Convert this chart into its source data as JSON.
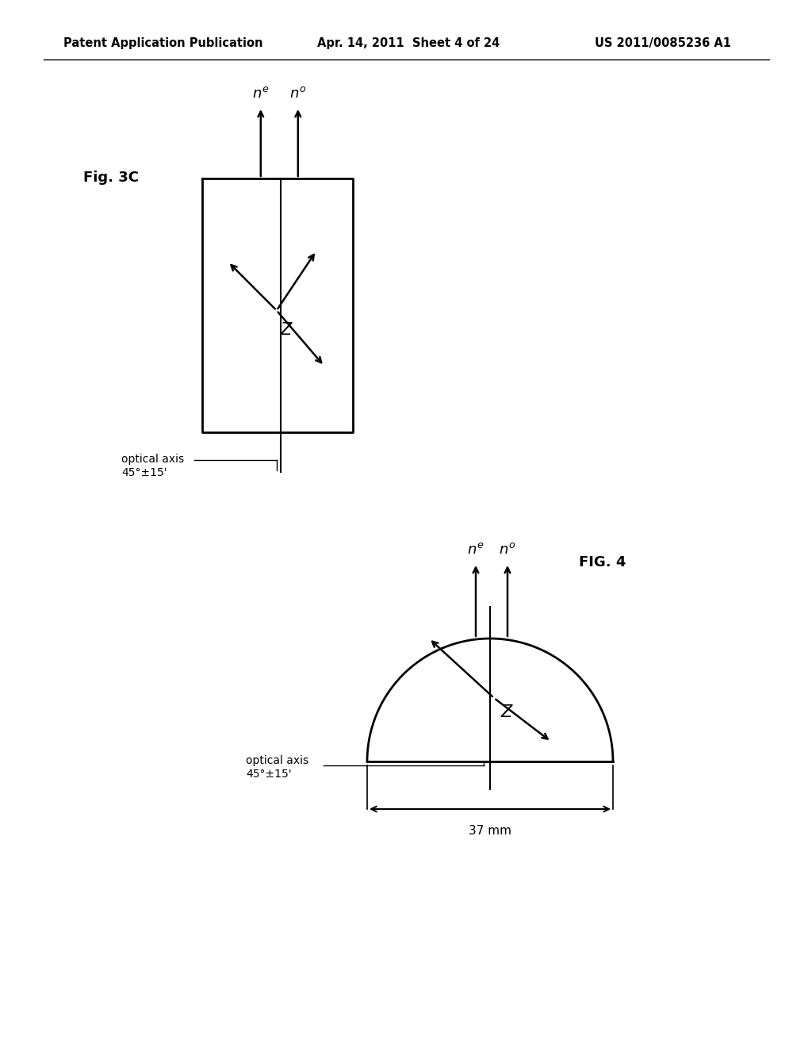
{
  "bg_color": "#ffffff",
  "header_left": "Patent Application Publication",
  "header_center": "Apr. 14, 2011  Sheet 4 of 24",
  "header_right": "US 2011/0085236 A1",
  "fig3c_label": "Fig. 3C",
  "fig4_label": "FIG. 4",
  "optical_axis_label1": "optical axis\n45°±15'",
  "optical_axis_label2": "optical axis\n45°±15'",
  "dim_label": "37 mm",
  "line_color": "#000000",
  "text_color": "#000000"
}
